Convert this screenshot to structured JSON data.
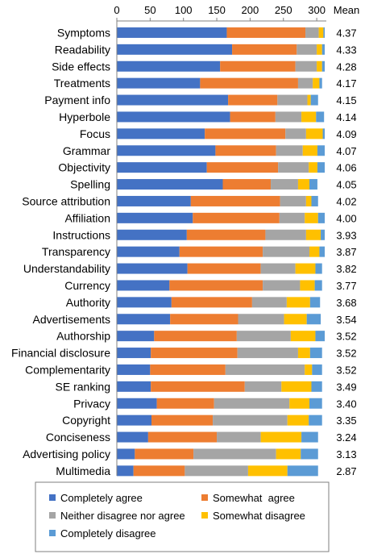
{
  "chart_data": {
    "type": "bar",
    "orientation": "horizontal",
    "stacked": true,
    "mean_header": "Mean",
    "xlim": [
      0,
      320
    ],
    "x_ticks": [
      0,
      50,
      100,
      150,
      200,
      250,
      300
    ],
    "x_axis_position": "top",
    "grid": false,
    "legend_position": "bottom",
    "categories": [
      "Symptoms",
      "Readability",
      "Side effects",
      "Treatments",
      "Payment info",
      "Hyperbole",
      "Focus",
      "Grammar",
      "Objectivity",
      "Spelling",
      "Source attribution",
      "Affiliation",
      "Instructions",
      "Transparency",
      "Understandability",
      "Currency",
      "Authority",
      "Advertisements",
      "Authorship",
      "Financial disclosure",
      "Complementarity",
      "SE ranking",
      "Privacy",
      "Copyright",
      "Conciseness",
      "Advertising policy",
      "Multimedia"
    ],
    "means": [
      "4.37",
      "4.33",
      "4.28",
      "4.17",
      "4.15",
      "4.14",
      "4.09",
      "4.07",
      "4.06",
      "4.05",
      "4.02",
      "4.00",
      "3.93",
      "3.87",
      "3.82",
      "3.77",
      "3.68",
      "3.54",
      "3.52",
      "3.52",
      "3.52",
      "3.49",
      "3.40",
      "3.35",
      "3.24",
      "3.13",
      "2.87"
    ],
    "series": [
      {
        "name": "Completely agree",
        "color": "#4472C4",
        "values": [
          165,
          173,
          155,
          125,
          167,
          170,
          132,
          148,
          135,
          159,
          111,
          114,
          105,
          94,
          106,
          79,
          82,
          80,
          56,
          51,
          50,
          51,
          60,
          52,
          47,
          27,
          25
        ]
      },
      {
        "name": "Somewhat  agree",
        "color": "#ED7D31",
        "values": [
          118,
          97,
          113,
          147,
          74,
          68,
          121,
          91,
          107,
          72,
          134,
          130,
          118,
          125,
          110,
          140,
          121,
          102,
          124,
          130,
          113,
          141,
          86,
          92,
          103,
          88,
          77
        ]
      },
      {
        "name": "Neither disagree nor agree",
        "color": "#A5A5A5",
        "values": [
          20,
          30,
          32,
          22,
          45,
          39,
          31,
          40,
          46,
          41,
          39,
          38,
          61,
          70,
          52,
          56,
          52,
          69,
          81,
          91,
          119,
          55,
          113,
          112,
          66,
          124,
          95
        ]
      },
      {
        "name": "Somewhat disagree",
        "color": "#FFC000",
        "values": [
          7,
          8,
          8,
          10,
          5,
          22,
          25,
          22,
          13,
          17,
          8,
          20,
          22,
          15,
          30,
          22,
          35,
          34,
          37,
          18,
          11,
          45,
          30,
          32,
          61,
          37,
          59
        ]
      },
      {
        "name": "Completely disagree",
        "color": "#5B9BD5",
        "values": [
          2,
          4,
          4,
          4,
          11,
          12,
          3,
          11,
          11,
          12,
          10,
          10,
          6,
          8,
          10,
          11,
          15,
          21,
          14,
          18,
          15,
          16,
          19,
          20,
          25,
          26,
          46
        ]
      }
    ]
  }
}
